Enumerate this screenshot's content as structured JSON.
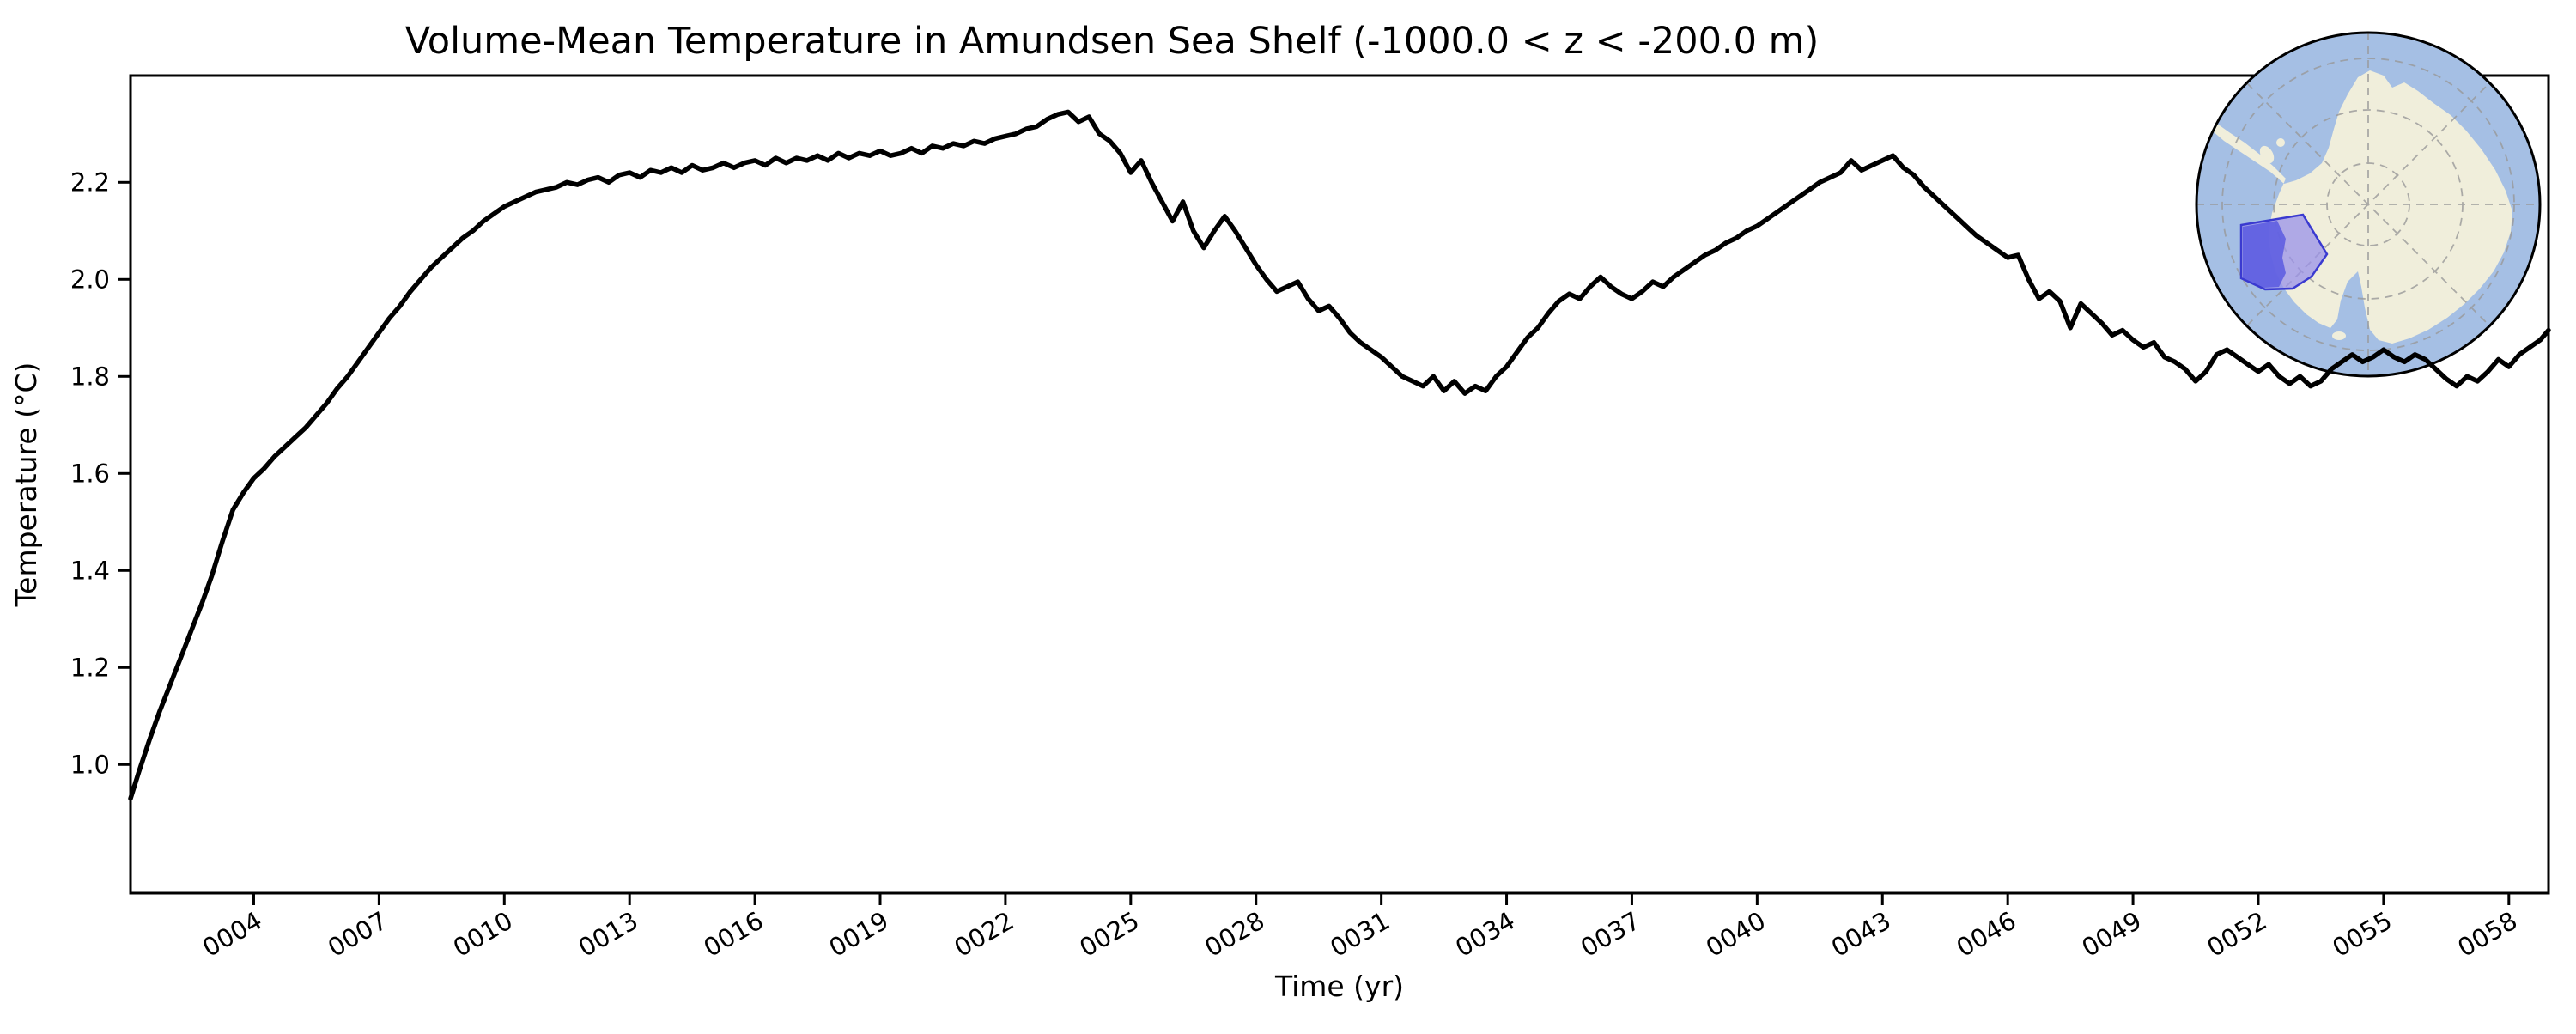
{
  "figure": {
    "background_color": "#ffffff"
  },
  "chart_data": {
    "type": "line",
    "title": "Volume-Mean Temperature in Amundsen Sea Shelf (-1000.0 < z < -200.0 m)",
    "xlabel": "Time (yr)",
    "ylabel": "Temperature (°C)",
    "xlim": [
      1.05,
      58.95
    ],
    "ylim": [
      0.735,
      2.42
    ],
    "grid": false,
    "legend": "none",
    "line_color": "#000000",
    "line_width": 5.5,
    "x_ticks": [
      {
        "value": 4,
        "label": "0004"
      },
      {
        "value": 7,
        "label": "0007"
      },
      {
        "value": 10,
        "label": "0010"
      },
      {
        "value": 13,
        "label": "0013"
      },
      {
        "value": 16,
        "label": "0016"
      },
      {
        "value": 19,
        "label": "0019"
      },
      {
        "value": 22,
        "label": "0022"
      },
      {
        "value": 25,
        "label": "0025"
      },
      {
        "value": 28,
        "label": "0028"
      },
      {
        "value": 31,
        "label": "0031"
      },
      {
        "value": 34,
        "label": "0034"
      },
      {
        "value": 37,
        "label": "0037"
      },
      {
        "value": 40,
        "label": "0040"
      },
      {
        "value": 43,
        "label": "0043"
      },
      {
        "value": 46,
        "label": "0046"
      },
      {
        "value": 49,
        "label": "0049"
      },
      {
        "value": 52,
        "label": "0052"
      },
      {
        "value": 55,
        "label": "0055"
      },
      {
        "value": 58,
        "label": "0058"
      }
    ],
    "y_ticks": [
      {
        "value": 1.0,
        "label": "1.0"
      },
      {
        "value": 1.2,
        "label": "1.2"
      },
      {
        "value": 1.4,
        "label": "1.4"
      },
      {
        "value": 1.6,
        "label": "1.6"
      },
      {
        "value": 1.8,
        "label": "1.8"
      },
      {
        "value": 2.0,
        "label": "2.0"
      },
      {
        "value": 2.2,
        "label": "2.2"
      }
    ],
    "series": [
      {
        "name": "volume-mean-temperature",
        "points": [
          [
            1.05,
            0.93
          ],
          [
            1.25,
            0.985
          ],
          [
            1.5,
            1.05
          ],
          [
            1.75,
            1.11
          ],
          [
            2.0,
            1.165
          ],
          [
            2.25,
            1.22
          ],
          [
            2.5,
            1.275
          ],
          [
            2.75,
            1.33
          ],
          [
            3.0,
            1.39
          ],
          [
            3.25,
            1.46
          ],
          [
            3.5,
            1.525
          ],
          [
            3.75,
            1.56
          ],
          [
            4.0,
            1.59
          ],
          [
            4.25,
            1.61
          ],
          [
            4.5,
            1.635
          ],
          [
            4.75,
            1.655
          ],
          [
            5.0,
            1.675
          ],
          [
            5.25,
            1.695
          ],
          [
            5.5,
            1.72
          ],
          [
            5.75,
            1.745
          ],
          [
            6.0,
            1.775
          ],
          [
            6.25,
            1.8
          ],
          [
            6.5,
            1.83
          ],
          [
            6.75,
            1.86
          ],
          [
            7.0,
            1.89
          ],
          [
            7.25,
            1.92
          ],
          [
            7.5,
            1.945
          ],
          [
            7.75,
            1.975
          ],
          [
            8.0,
            2.0
          ],
          [
            8.25,
            2.025
          ],
          [
            8.5,
            2.045
          ],
          [
            8.75,
            2.065
          ],
          [
            9.0,
            2.085
          ],
          [
            9.25,
            2.1
          ],
          [
            9.5,
            2.12
          ],
          [
            9.75,
            2.135
          ],
          [
            10.0,
            2.15
          ],
          [
            10.25,
            2.16
          ],
          [
            10.5,
            2.17
          ],
          [
            10.75,
            2.18
          ],
          [
            11.0,
            2.185
          ],
          [
            11.25,
            2.19
          ],
          [
            11.5,
            2.2
          ],
          [
            11.75,
            2.195
          ],
          [
            12.0,
            2.205
          ],
          [
            12.25,
            2.21
          ],
          [
            12.5,
            2.2
          ],
          [
            12.75,
            2.215
          ],
          [
            13.0,
            2.22
          ],
          [
            13.25,
            2.21
          ],
          [
            13.5,
            2.225
          ],
          [
            13.75,
            2.22
          ],
          [
            14.0,
            2.23
          ],
          [
            14.25,
            2.22
          ],
          [
            14.5,
            2.235
          ],
          [
            14.75,
            2.225
          ],
          [
            15.0,
            2.23
          ],
          [
            15.25,
            2.24
          ],
          [
            15.5,
            2.23
          ],
          [
            15.75,
            2.24
          ],
          [
            16.0,
            2.245
          ],
          [
            16.25,
            2.235
          ],
          [
            16.5,
            2.25
          ],
          [
            16.75,
            2.24
          ],
          [
            17.0,
            2.25
          ],
          [
            17.25,
            2.245
          ],
          [
            17.5,
            2.255
          ],
          [
            17.75,
            2.245
          ],
          [
            18.0,
            2.26
          ],
          [
            18.25,
            2.25
          ],
          [
            18.5,
            2.26
          ],
          [
            18.75,
            2.255
          ],
          [
            19.0,
            2.265
          ],
          [
            19.25,
            2.255
          ],
          [
            19.5,
            2.26
          ],
          [
            19.75,
            2.27
          ],
          [
            20.0,
            2.26
          ],
          [
            20.25,
            2.275
          ],
          [
            20.5,
            2.27
          ],
          [
            20.75,
            2.28
          ],
          [
            21.0,
            2.275
          ],
          [
            21.25,
            2.285
          ],
          [
            21.5,
            2.28
          ],
          [
            21.75,
            2.29
          ],
          [
            22.0,
            2.295
          ],
          [
            22.25,
            2.3
          ],
          [
            22.5,
            2.31
          ],
          [
            22.75,
            2.315
          ],
          [
            23.0,
            2.33
          ],
          [
            23.25,
            2.34
          ],
          [
            23.5,
            2.345
          ],
          [
            23.75,
            2.325
          ],
          [
            24.0,
            2.335
          ],
          [
            24.25,
            2.3
          ],
          [
            24.5,
            2.285
          ],
          [
            24.75,
            2.26
          ],
          [
            25.0,
            2.22
          ],
          [
            25.25,
            2.245
          ],
          [
            25.5,
            2.2
          ],
          [
            25.75,
            2.16
          ],
          [
            26.0,
            2.12
          ],
          [
            26.25,
            2.16
          ],
          [
            26.5,
            2.1
          ],
          [
            26.75,
            2.065
          ],
          [
            27.0,
            2.1
          ],
          [
            27.25,
            2.13
          ],
          [
            27.5,
            2.1
          ],
          [
            27.75,
            2.065
          ],
          [
            28.0,
            2.03
          ],
          [
            28.25,
            2.0
          ],
          [
            28.5,
            1.975
          ],
          [
            28.75,
            1.985
          ],
          [
            29.0,
            1.995
          ],
          [
            29.25,
            1.96
          ],
          [
            29.5,
            1.935
          ],
          [
            29.75,
            1.945
          ],
          [
            30.0,
            1.92
          ],
          [
            30.25,
            1.89
          ],
          [
            30.5,
            1.87
          ],
          [
            30.75,
            1.855
          ],
          [
            31.0,
            1.84
          ],
          [
            31.25,
            1.82
          ],
          [
            31.5,
            1.8
          ],
          [
            31.75,
            1.79
          ],
          [
            32.0,
            1.78
          ],
          [
            32.25,
            1.8
          ],
          [
            32.5,
            1.77
          ],
          [
            32.75,
            1.79
          ],
          [
            33.0,
            1.765
          ],
          [
            33.25,
            1.78
          ],
          [
            33.5,
            1.77
          ],
          [
            33.75,
            1.8
          ],
          [
            34.0,
            1.82
          ],
          [
            34.25,
            1.85
          ],
          [
            34.5,
            1.88
          ],
          [
            34.75,
            1.9
          ],
          [
            35.0,
            1.93
          ],
          [
            35.25,
            1.955
          ],
          [
            35.5,
            1.97
          ],
          [
            35.75,
            1.96
          ],
          [
            36.0,
            1.985
          ],
          [
            36.25,
            2.005
          ],
          [
            36.5,
            1.985
          ],
          [
            36.75,
            1.97
          ],
          [
            37.0,
            1.96
          ],
          [
            37.25,
            1.975
          ],
          [
            37.5,
            1.995
          ],
          [
            37.75,
            1.985
          ],
          [
            38.0,
            2.005
          ],
          [
            38.25,
            2.02
          ],
          [
            38.5,
            2.035
          ],
          [
            38.75,
            2.05
          ],
          [
            39.0,
            2.06
          ],
          [
            39.25,
            2.075
          ],
          [
            39.5,
            2.085
          ],
          [
            39.75,
            2.1
          ],
          [
            40.0,
            2.11
          ],
          [
            40.25,
            2.125
          ],
          [
            40.5,
            2.14
          ],
          [
            40.75,
            2.155
          ],
          [
            41.0,
            2.17
          ],
          [
            41.25,
            2.185
          ],
          [
            41.5,
            2.2
          ],
          [
            41.75,
            2.21
          ],
          [
            42.0,
            2.22
          ],
          [
            42.25,
            2.245
          ],
          [
            42.5,
            2.225
          ],
          [
            42.75,
            2.235
          ],
          [
            43.0,
            2.245
          ],
          [
            43.25,
            2.255
          ],
          [
            43.5,
            2.23
          ],
          [
            43.75,
            2.215
          ],
          [
            44.0,
            2.19
          ],
          [
            44.25,
            2.17
          ],
          [
            44.5,
            2.15
          ],
          [
            44.75,
            2.13
          ],
          [
            45.0,
            2.11
          ],
          [
            45.25,
            2.09
          ],
          [
            45.5,
            2.075
          ],
          [
            45.75,
            2.06
          ],
          [
            46.0,
            2.045
          ],
          [
            46.25,
            2.05
          ],
          [
            46.5,
            2.0
          ],
          [
            46.75,
            1.96
          ],
          [
            47.0,
            1.975
          ],
          [
            47.25,
            1.955
          ],
          [
            47.5,
            1.9
          ],
          [
            47.75,
            1.95
          ],
          [
            48.0,
            1.93
          ],
          [
            48.25,
            1.91
          ],
          [
            48.5,
            1.885
          ],
          [
            48.75,
            1.895
          ],
          [
            49.0,
            1.875
          ],
          [
            49.25,
            1.86
          ],
          [
            49.5,
            1.87
          ],
          [
            49.75,
            1.84
          ],
          [
            50.0,
            1.83
          ],
          [
            50.25,
            1.815
          ],
          [
            50.5,
            1.79
          ],
          [
            50.75,
            1.81
          ],
          [
            51.0,
            1.845
          ],
          [
            51.25,
            1.855
          ],
          [
            51.5,
            1.84
          ],
          [
            51.75,
            1.825
          ],
          [
            52.0,
            1.81
          ],
          [
            52.25,
            1.825
          ],
          [
            52.5,
            1.8
          ],
          [
            52.75,
            1.785
          ],
          [
            53.0,
            1.8
          ],
          [
            53.25,
            1.78
          ],
          [
            53.5,
            1.79
          ],
          [
            53.75,
            1.815
          ],
          [
            54.0,
            1.83
          ],
          [
            54.25,
            1.845
          ],
          [
            54.5,
            1.83
          ],
          [
            54.75,
            1.84
          ],
          [
            55.0,
            1.855
          ],
          [
            55.25,
            1.84
          ],
          [
            55.5,
            1.83
          ],
          [
            55.75,
            1.845
          ],
          [
            56.0,
            1.835
          ],
          [
            56.25,
            1.815
          ],
          [
            56.5,
            1.795
          ],
          [
            56.75,
            1.78
          ],
          [
            57.0,
            1.8
          ],
          [
            57.25,
            1.79
          ],
          [
            57.5,
            1.81
          ],
          [
            57.75,
            1.835
          ],
          [
            58.0,
            1.82
          ],
          [
            58.25,
            1.845
          ],
          [
            58.5,
            1.86
          ],
          [
            58.75,
            1.875
          ],
          [
            58.95,
            1.895
          ]
        ]
      }
    ]
  },
  "inset_map": {
    "name": "antarctica-locator-map",
    "projection": "south-polar",
    "ocean_color": "#a5bfe4",
    "land_color": "#f0eedb",
    "graticule_color": "#999999",
    "region_fill_color": "#9a92ea",
    "region_fill_opacity": "0.75",
    "region_deep_fill_color": "#5a5ae0",
    "region_deep_fill_opacity": "0.85",
    "region_border_color": "#3a3ad0",
    "outline_color": "#000000"
  }
}
